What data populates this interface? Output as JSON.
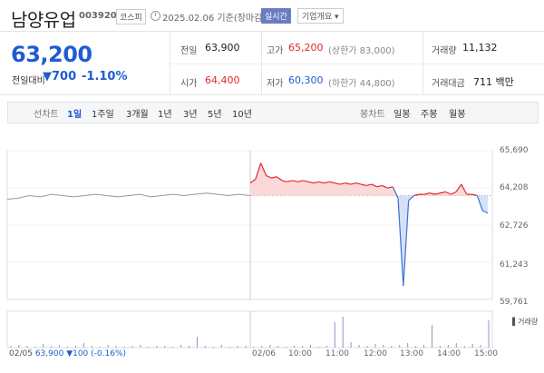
{
  "header": {
    "name": "남양유업",
    "code": "003920",
    "market": "코스피",
    "date": "2025.02.06 기준(장마감)",
    "live_label": "실시간",
    "info_label": "기업개요 ▾"
  },
  "summary": {
    "price": "63,200",
    "change_label": "전일대비",
    "change_value": "700",
    "change_pct": "-1.10%",
    "prev_label": "전일",
    "prev_value": "63,900",
    "high_label": "고가",
    "high_value": "65,200",
    "upper_limit": "(상한가 83,000)",
    "volume_label": "거래량",
    "volume_value": "11,132",
    "open_label": "시가",
    "open_value": "64,400",
    "low_label": "저가",
    "low_value": "60,300",
    "lower_limit": "(하한가 44,800)",
    "amount_label": "거래대금",
    "amount_value": "711 백만"
  },
  "toolbar": {
    "line_label": "선차트",
    "periods": [
      "1일",
      "1주일",
      "3개월",
      "1년",
      "3년",
      "5년",
      "10년"
    ],
    "candle_label": "봉차트",
    "candles": [
      "일봉",
      "주봉",
      "월봉"
    ]
  },
  "chart_data": {
    "type": "line",
    "y_ticks": [
      "65,690",
      "64,208",
      "62,726",
      "61,243",
      "59,761"
    ],
    "ylim": [
      59761,
      65690
    ],
    "x_ticks": [
      "02/05",
      "02/06",
      "10:00",
      "11:00",
      "12:00",
      "13:00",
      "14:00",
      "15:00"
    ],
    "reference": 63900,
    "prev_day_series": [
      63750,
      63800,
      63900,
      63850,
      63950,
      63900,
      63850,
      63900,
      63950,
      63900,
      63850,
      63900,
      63950,
      63850,
      63900,
      63950,
      63900,
      63950,
      64000,
      63950,
      63900,
      63950,
      63900
    ],
    "today_series": [
      64400,
      64550,
      65200,
      64700,
      64600,
      64650,
      64500,
      64450,
      64500,
      64450,
      64500,
      64450,
      64400,
      64450,
      64400,
      64450,
      64400,
      64350,
      64400,
      64350,
      64400,
      64350,
      64300,
      64350,
      64250,
      64300,
      64200,
      64250,
      63800,
      60300,
      63700,
      63900,
      63950,
      63950,
      64000,
      63950,
      64000,
      64050,
      63950,
      64050,
      64350,
      63950,
      63950,
      63900,
      63300,
      63200
    ],
    "volume_label": "거래량"
  },
  "footer": {
    "date": "02/05",
    "price": "63,900",
    "change": "▼100",
    "pct": "(-0.16%)"
  }
}
